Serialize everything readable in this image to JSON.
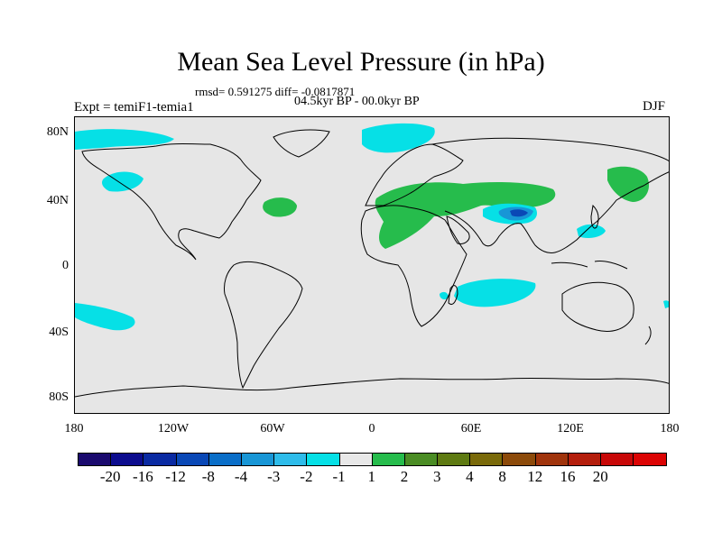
{
  "title": "Mean Sea Level Pressure (in hPa)",
  "stats": "rmsd= 0.591275  diff= -0.0817871",
  "period": "04.5kyr BP - 00.0kyr BP",
  "experiment": "Expt = temiF1-temia1",
  "season": "DJF",
  "map": {
    "lon_ticks": [
      "180",
      "120W",
      "60W",
      "0",
      "60E",
      "120E",
      "180"
    ],
    "lat_ticks": [
      "80N",
      "40N",
      "0",
      "40S",
      "80S"
    ]
  },
  "colorbar": {
    "colors": [
      "#1a0a6e",
      "#0c0c8e",
      "#0a2aa2",
      "#0a48b6",
      "#0a6ec8",
      "#1896d6",
      "#2ebcea",
      "#06e0e6",
      "#e8e8e8",
      "#26bc4c",
      "#4a8c24",
      "#5e7a12",
      "#7a6a0a",
      "#8c4a0a",
      "#a0340c",
      "#b41e0c",
      "#c80808",
      "#dc0404"
    ],
    "labels": [
      "-20",
      "-16",
      "-12",
      "-8",
      "-4",
      "-3",
      "-2",
      "-1",
      "1",
      "2",
      "3",
      "4",
      "8",
      "12",
      "16",
      "20"
    ]
  },
  "colors": {
    "land_outline": "#000000",
    "ocean_background": "#e6e6e6",
    "positive_anomaly": "#26bc4c",
    "negative_anomaly": "#06e0e6",
    "strong_negative": "#1896d6",
    "extreme_negative": "#0a48b6"
  }
}
